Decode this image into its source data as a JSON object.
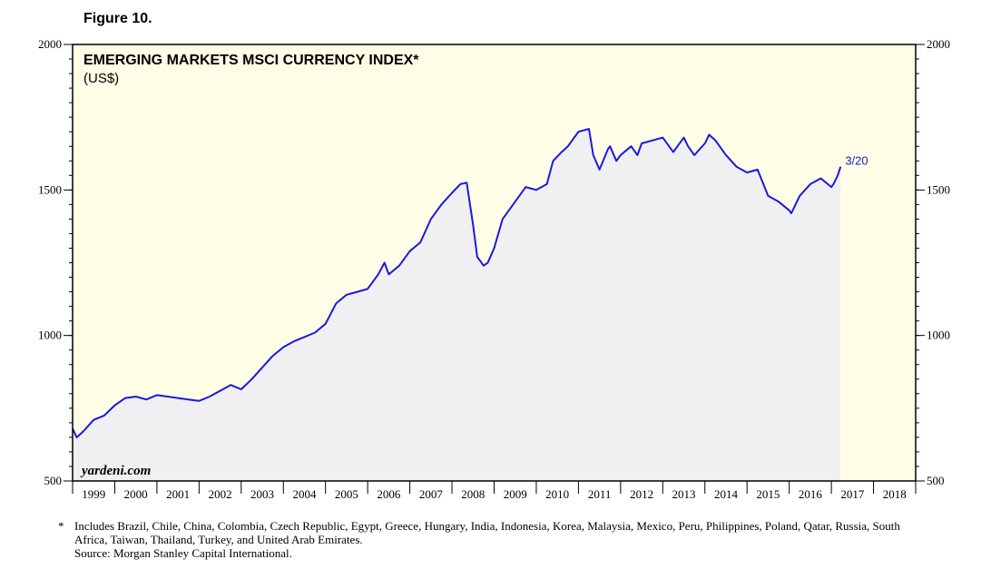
{
  "figure_label": "Figure 10.",
  "footnote": {
    "marker": "*",
    "countries": "Includes Brazil, Chile, China, Colombia, Czech Republic, Egypt, Greece, Hungary, India, Indonesia, Korea, Malaysia, Mexico, Peru, Philippines, Poland, Qatar, Russia, South Africa, Taiwan, Thailand, Turkey, and United Arab Emirates.",
    "source": "Source: Morgan Stanley Capital International."
  },
  "colors": {
    "plot_background": "#fffde6",
    "area_fill": "#f0f0f2",
    "line": "#1a1adb",
    "axis": "#000000"
  },
  "chart_data": {
    "type": "line",
    "title": "EMERGING MARKETS MSCI CURRENCY INDEX*",
    "subtitle": "(US$)",
    "watermark": "yardeni.com",
    "end_label": "3/20",
    "xlabel": "",
    "ylabel": "",
    "x_range": [
      1999.0,
      2019.0
    ],
    "ylim": [
      500,
      2000
    ],
    "y_ticks": [
      500,
      1000,
      1500,
      2000
    ],
    "y_tick_labels": [
      "500",
      "1000",
      "1500",
      "2000"
    ],
    "year_labels": [
      "1999",
      "2000",
      "2001",
      "2002",
      "2003",
      "2004",
      "2005",
      "2006",
      "2007",
      "2008",
      "2009",
      "2010",
      "2011",
      "2012",
      "2013",
      "2014",
      "2015",
      "2016",
      "2017",
      "2018"
    ],
    "series": [
      {
        "name": "Emerging Markets MSCI Currency Index",
        "x": [
          1999.0,
          1999.1,
          1999.25,
          1999.5,
          1999.75,
          2000.0,
          2000.25,
          2000.5,
          2000.75,
          2001.0,
          2001.25,
          2001.5,
          2001.75,
          2002.0,
          2002.25,
          2002.5,
          2002.75,
          2003.0,
          2003.25,
          2003.5,
          2003.75,
          2004.0,
          2004.25,
          2004.5,
          2004.75,
          2005.0,
          2005.25,
          2005.5,
          2005.75,
          2006.0,
          2006.25,
          2006.4,
          2006.5,
          2006.75,
          2007.0,
          2007.25,
          2007.5,
          2007.75,
          2008.0,
          2008.2,
          2008.35,
          2008.5,
          2008.6,
          2008.75,
          2008.85,
          2009.0,
          2009.2,
          2009.5,
          2009.75,
          2010.0,
          2010.25,
          2010.4,
          2010.6,
          2010.75,
          2011.0,
          2011.25,
          2011.35,
          2011.5,
          2011.7,
          2011.75,
          2011.9,
          2012.0,
          2012.25,
          2012.4,
          2012.5,
          2012.75,
          2013.0,
          2013.25,
          2013.5,
          2013.6,
          2013.75,
          2014.0,
          2014.1,
          2014.25,
          2014.5,
          2014.75,
          2015.0,
          2015.25,
          2015.5,
          2015.75,
          2016.0,
          2016.05,
          2016.25,
          2016.5,
          2016.75,
          2017.0,
          2017.05,
          2017.15,
          2017.22
        ],
        "values": [
          680,
          650,
          670,
          710,
          725,
          760,
          785,
          790,
          780,
          795,
          790,
          785,
          780,
          775,
          790,
          810,
          830,
          815,
          850,
          890,
          930,
          960,
          980,
          995,
          1010,
          1040,
          1110,
          1140,
          1150,
          1160,
          1210,
          1250,
          1210,
          1240,
          1290,
          1320,
          1400,
          1450,
          1490,
          1520,
          1525,
          1380,
          1270,
          1240,
          1250,
          1300,
          1400,
          1460,
          1510,
          1500,
          1520,
          1600,
          1630,
          1650,
          1700,
          1710,
          1620,
          1570,
          1640,
          1650,
          1600,
          1620,
          1650,
          1620,
          1660,
          1670,
          1680,
          1630,
          1680,
          1650,
          1620,
          1660,
          1690,
          1670,
          1620,
          1580,
          1560,
          1570,
          1480,
          1460,
          1430,
          1420,
          1480,
          1520,
          1540,
          1510,
          1520,
          1550,
          1580
        ]
      }
    ]
  }
}
